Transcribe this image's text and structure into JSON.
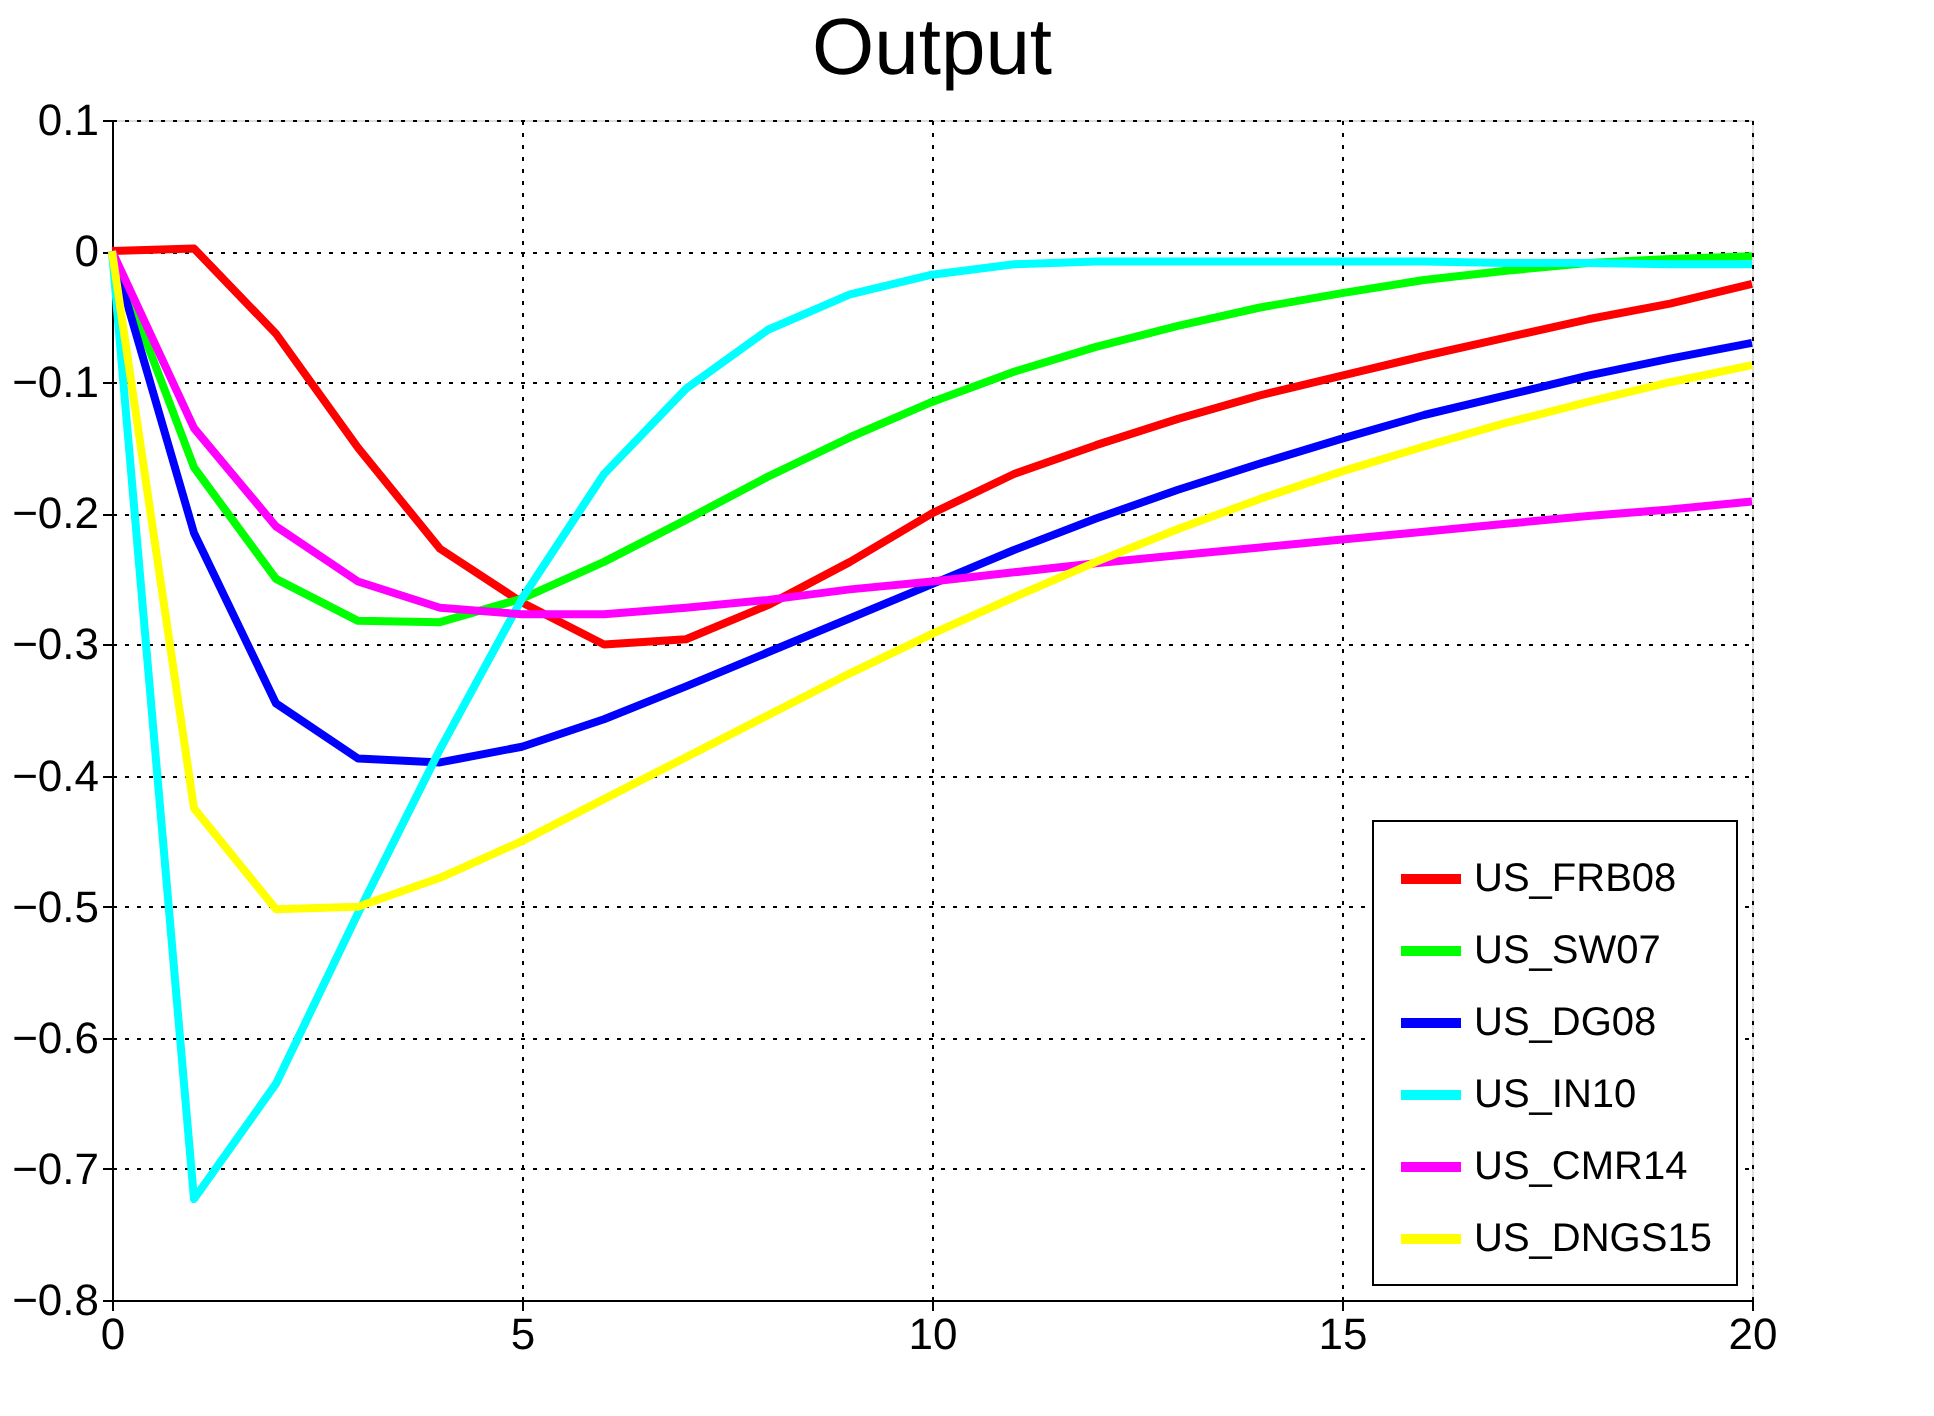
{
  "chart_data": {
    "type": "line",
    "title": "Output",
    "x": [
      0,
      1,
      2,
      3,
      4,
      5,
      6,
      7,
      8,
      9,
      10,
      11,
      12,
      13,
      14,
      15,
      16,
      17,
      18,
      19,
      20
    ],
    "series": [
      {
        "name": "US_FRB08",
        "color": "#ff0000",
        "values": [
          0,
          0.002,
          -0.063,
          -0.15,
          -0.227,
          -0.268,
          -0.3,
          -0.296,
          -0.27,
          -0.237,
          -0.2,
          -0.17,
          -0.148,
          -0.128,
          -0.11,
          -0.095,
          -0.08,
          -0.066,
          -0.052,
          -0.04,
          -0.025
        ]
      },
      {
        "name": "US_SW07",
        "color": "#00ff00",
        "values": [
          0,
          -0.165,
          -0.25,
          -0.282,
          -0.283,
          -0.265,
          -0.237,
          -0.205,
          -0.172,
          -0.142,
          -0.115,
          -0.092,
          -0.073,
          -0.057,
          -0.043,
          -0.032,
          -0.022,
          -0.015,
          -0.009,
          -0.006,
          -0.004
        ]
      },
      {
        "name": "US_DG08",
        "color": "#0000ff",
        "values": [
          0,
          -0.215,
          -0.345,
          -0.387,
          -0.39,
          -0.378,
          -0.357,
          -0.332,
          -0.306,
          -0.28,
          -0.254,
          -0.228,
          -0.204,
          -0.182,
          -0.162,
          -0.143,
          -0.125,
          -0.11,
          -0.095,
          -0.082,
          -0.07
        ]
      },
      {
        "name": "US_IN10",
        "color": "#00ffff",
        "values": [
          0,
          -0.723,
          -0.635,
          -0.505,
          -0.38,
          -0.265,
          -0.17,
          -0.105,
          -0.06,
          -0.033,
          -0.018,
          -0.01,
          -0.008,
          -0.008,
          -0.008,
          -0.008,
          -0.008,
          -0.009,
          -0.009,
          -0.01,
          -0.01
        ]
      },
      {
        "name": "US_CMR14",
        "color": "#ff00ff",
        "values": [
          0,
          -0.135,
          -0.21,
          -0.252,
          -0.272,
          -0.277,
          -0.277,
          -0.272,
          -0.266,
          -0.258,
          -0.252,
          -0.245,
          -0.238,
          -0.232,
          -0.226,
          -0.22,
          -0.214,
          -0.208,
          -0.202,
          -0.197,
          -0.191
        ]
      },
      {
        "name": "US_DNGS15",
        "color": "#ffff00",
        "values": [
          0,
          -0.425,
          -0.502,
          -0.5,
          -0.478,
          -0.45,
          -0.418,
          -0.386,
          -0.354,
          -0.322,
          -0.292,
          -0.264,
          -0.237,
          -0.212,
          -0.189,
          -0.168,
          -0.149,
          -0.131,
          -0.115,
          -0.1,
          -0.087
        ]
      }
    ],
    "xlim": [
      0,
      20
    ],
    "xticks": [
      0,
      5,
      10,
      15,
      20
    ],
    "ylim": [
      -0.8,
      0.1
    ],
    "yticks": [
      -0.8,
      -0.7,
      -0.6,
      -0.5,
      -0.4,
      -0.3,
      -0.2,
      -0.1,
      0,
      0.1
    ],
    "grid": true,
    "legend": "bottom right",
    "line_style": "solid",
    "marker": "none"
  }
}
